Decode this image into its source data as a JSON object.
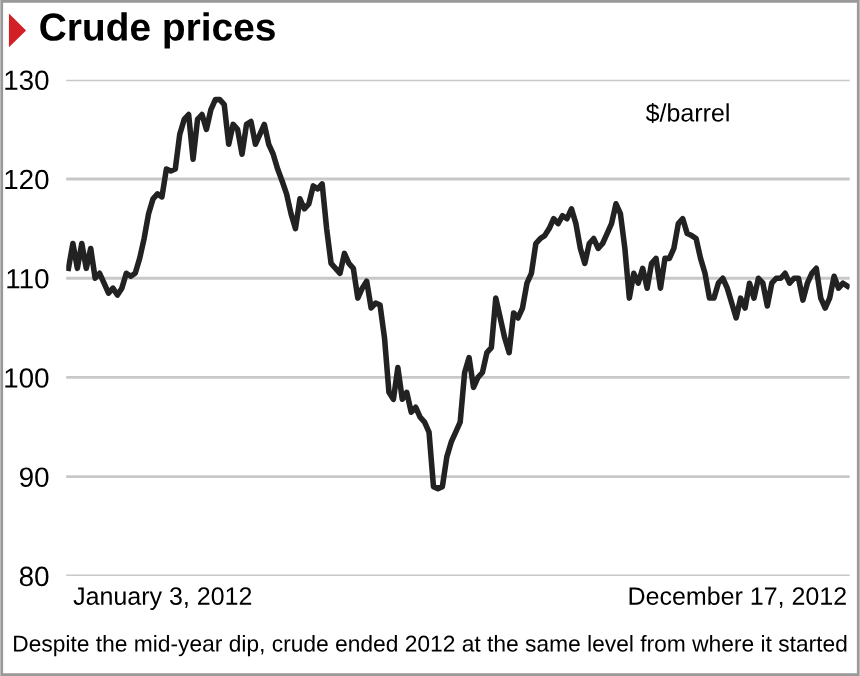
{
  "chart_data": {
    "type": "line",
    "title": "Crude prices",
    "categories": [
      null,
      null,
      null,
      null,
      null,
      null,
      null,
      null,
      null,
      null,
      null,
      null,
      null,
      null,
      null,
      null,
      null,
      null,
      null,
      null,
      null,
      null,
      null,
      null,
      null,
      null,
      null,
      null,
      null,
      null,
      null,
      null,
      null,
      null,
      null,
      null,
      null,
      null,
      null,
      null,
      null,
      null,
      null,
      null,
      null,
      null,
      null,
      null,
      null,
      null,
      null,
      null,
      null,
      null,
      null,
      null,
      null,
      null,
      null,
      null,
      null,
      null,
      null,
      null,
      null,
      null,
      null,
      null,
      null,
      null,
      null,
      null,
      null,
      null,
      null,
      null,
      null,
      null,
      null,
      null,
      null,
      null,
      null,
      null,
      null,
      null,
      null,
      null,
      null,
      null,
      null,
      null,
      null,
      null,
      null,
      null,
      null,
      null,
      null,
      null,
      null,
      null,
      null,
      null,
      null,
      null,
      null,
      null,
      null,
      null,
      null,
      null,
      null,
      null,
      null,
      null,
      null,
      null,
      null,
      null,
      null,
      null,
      null,
      null,
      null,
      null,
      null,
      null,
      null,
      null,
      null,
      null,
      null,
      null,
      null,
      null,
      null,
      null,
      null,
      null,
      null,
      null,
      null,
      null,
      null,
      null,
      null,
      null,
      null,
      null,
      null,
      null,
      null,
      null,
      null,
      null,
      null,
      null,
      null,
      null,
      null,
      null,
      null,
      null,
      null,
      null,
      null,
      null,
      null,
      null,
      null,
      null,
      null,
      null,
      null,
      null
    ],
    "series": [
      {
        "color": "#222222",
        "values": [
          111,
          113.5,
          111,
          113.5,
          111,
          113,
          110,
          110.5,
          109.5,
          108.5,
          109,
          108.3,
          109,
          110.5,
          110.2,
          110.5,
          112,
          114,
          116.5,
          118,
          118.5,
          118.2,
          121,
          120.8,
          121,
          124.5,
          126,
          126.5,
          122,
          126,
          126.5,
          125,
          127,
          128,
          128,
          127.5,
          123.5,
          125.5,
          125,
          122.5,
          125.5,
          125.8,
          123.5,
          124.5,
          125.5,
          123.5,
          122.5,
          121,
          119.8,
          118.5,
          116.5,
          115,
          118,
          117,
          117.5,
          119.3,
          119,
          119.5,
          115,
          111.5,
          111,
          110.5,
          112.5,
          111.5,
          111,
          108,
          109,
          109.7,
          107,
          107.5,
          107.3,
          104,
          98.5,
          97.8,
          101,
          97.8,
          98.5,
          96.5,
          97,
          96,
          95.5,
          94.5,
          89,
          88.8,
          89,
          92,
          93.5,
          94.5,
          95.5,
          100.5,
          102,
          99,
          100,
          100.5,
          102.5,
          103,
          108,
          106,
          104,
          102.5,
          106.5,
          106,
          107,
          109.5,
          110.5,
          113.5,
          114,
          114.3,
          115,
          116,
          115.5,
          116.3,
          116,
          117,
          115.5,
          113,
          111.5,
          113.5,
          114,
          113,
          113.5,
          114.5,
          115.5,
          117.5,
          116.5,
          113,
          108,
          110.5,
          109.5,
          111,
          109,
          111.5,
          112,
          109,
          112,
          112,
          113,
          115.5,
          116,
          114.5,
          114.3,
          114,
          112,
          110.5,
          108,
          108,
          109.5,
          110,
          109,
          107.5,
          106,
          108,
          107,
          109.5,
          108,
          110,
          109.5,
          107.2,
          109.5,
          110,
          110,
          110.5,
          109.5,
          110,
          110,
          107.8,
          109.5,
          110.5,
          111,
          108,
          107,
          108,
          110.2,
          109,
          109.5,
          109.2
        ]
      }
    ],
    "ylim": [
      80,
      130
    ],
    "yticks": [
      80,
      90,
      100,
      110,
      120,
      130
    ],
    "grid": "y",
    "tick_labels": "y",
    "marker": "none",
    "line_style": "solid",
    "annotations": [
      "$/barrel",
      "January 3, 2012",
      "December 17, 2012",
      "Despite the mid-year dip, crude ended 2012 at the same level from where it started"
    ]
  }
}
